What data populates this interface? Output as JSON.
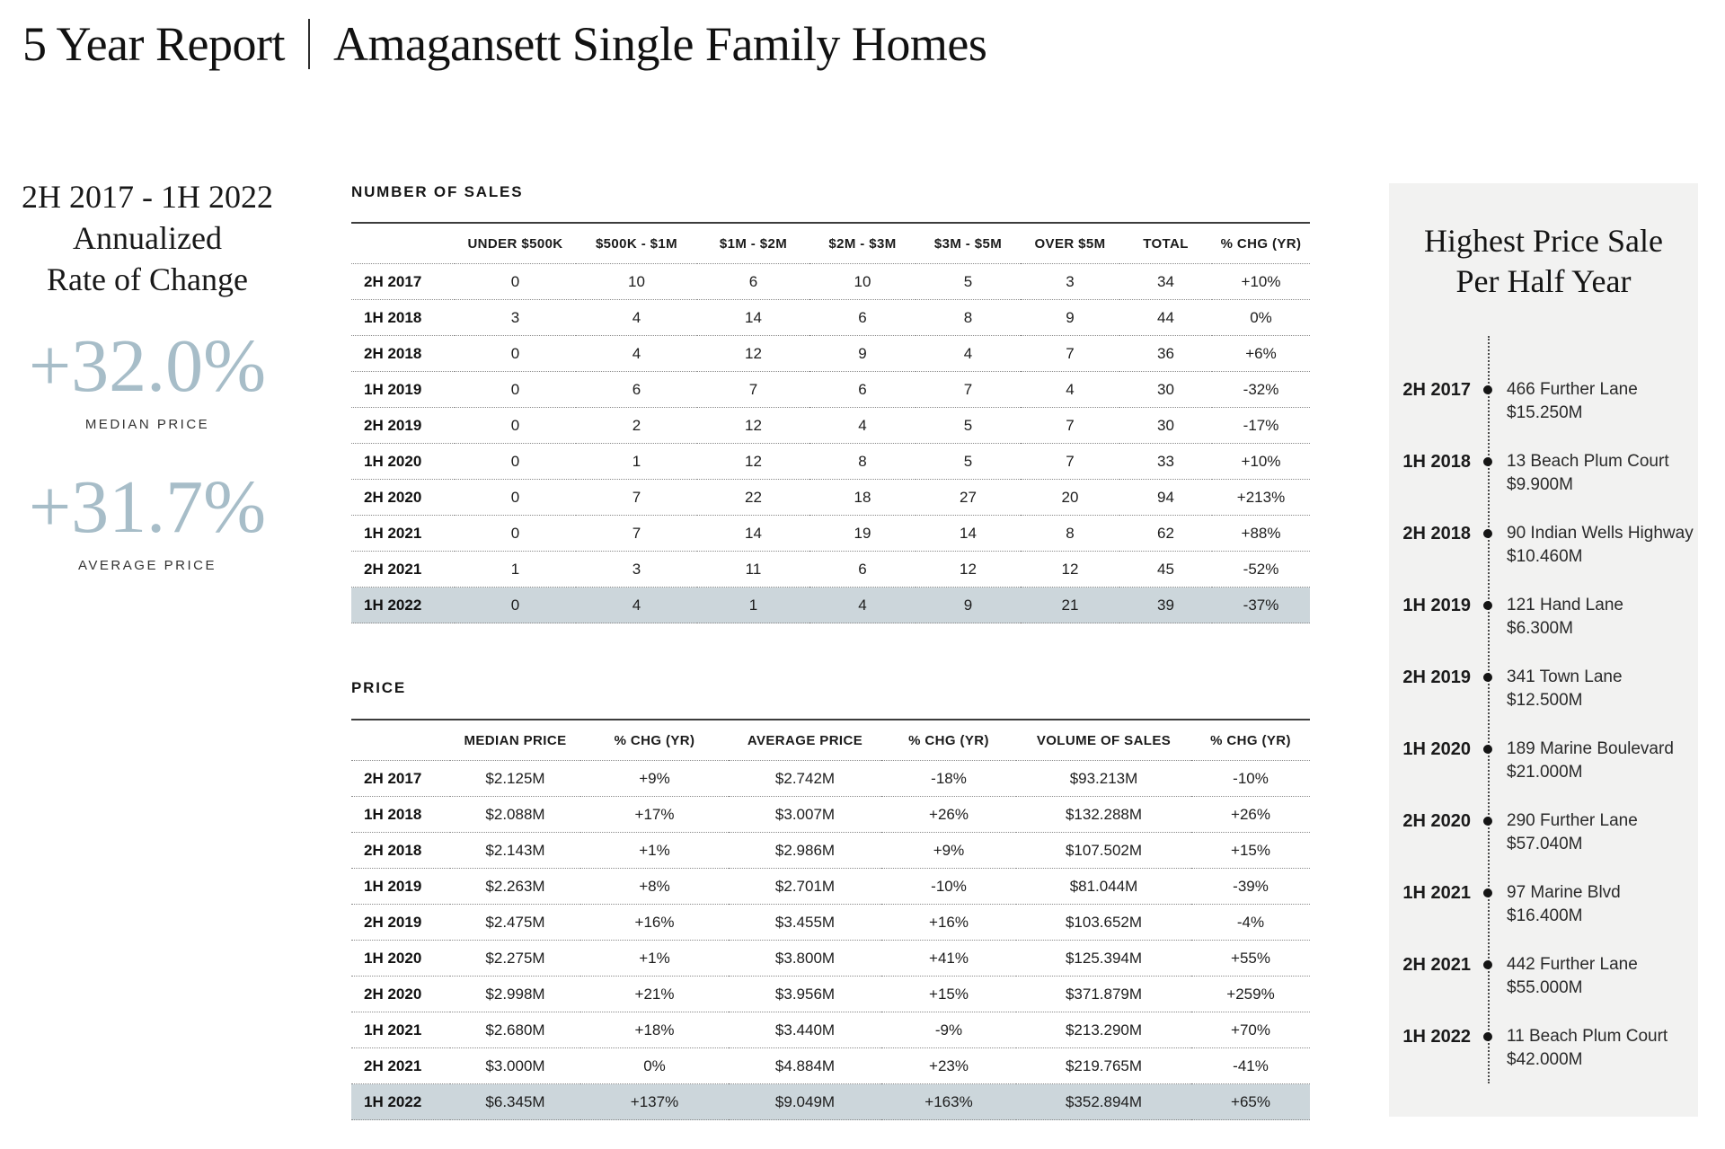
{
  "page_title": {
    "left": "5 Year Report",
    "right": "Amagansett Single Family Homes"
  },
  "summary": {
    "period": [
      "2H 2017 - 1H 2022",
      "Annualized",
      "Rate of Change"
    ],
    "stats": [
      {
        "value": "+32.0%",
        "label": "MEDIAN PRICE"
      },
      {
        "value": "+31.7%",
        "label": "AVERAGE PRICE"
      }
    ]
  },
  "sales_table": {
    "title": "NUMBER OF SALES",
    "columns": [
      "UNDER $500K",
      "$500K - $1M",
      "$1M - $2M",
      "$2M - $3M",
      "$3M - $5M",
      "OVER $5M",
      "TOTAL",
      "% CHG (YR)"
    ],
    "rows": [
      {
        "label": "2H 2017",
        "values": [
          "0",
          "10",
          "6",
          "10",
          "5",
          "3",
          "34",
          "+10%"
        ],
        "highlight": false
      },
      {
        "label": "1H 2018",
        "values": [
          "3",
          "4",
          "14",
          "6",
          "8",
          "9",
          "44",
          "0%"
        ],
        "highlight": false
      },
      {
        "label": "2H 2018",
        "values": [
          "0",
          "4",
          "12",
          "9",
          "4",
          "7",
          "36",
          "+6%"
        ],
        "highlight": false
      },
      {
        "label": "1H 2019",
        "values": [
          "0",
          "6",
          "7",
          "6",
          "7",
          "4",
          "30",
          "-32%"
        ],
        "highlight": false
      },
      {
        "label": "2H 2019",
        "values": [
          "0",
          "2",
          "12",
          "4",
          "5",
          "7",
          "30",
          "-17%"
        ],
        "highlight": false
      },
      {
        "label": "1H 2020",
        "values": [
          "0",
          "1",
          "12",
          "8",
          "5",
          "7",
          "33",
          "+10%"
        ],
        "highlight": false
      },
      {
        "label": "2H 2020",
        "values": [
          "0",
          "7",
          "22",
          "18",
          "27",
          "20",
          "94",
          "+213%"
        ],
        "highlight": false
      },
      {
        "label": "1H 2021",
        "values": [
          "0",
          "7",
          "14",
          "19",
          "14",
          "8",
          "62",
          "+88%"
        ],
        "highlight": false
      },
      {
        "label": "2H 2021",
        "values": [
          "1",
          "3",
          "11",
          "6",
          "12",
          "12",
          "45",
          "-52%"
        ],
        "highlight": false
      },
      {
        "label": "1H 2022",
        "values": [
          "0",
          "4",
          "1",
          "4",
          "9",
          "21",
          "39",
          "-37%"
        ],
        "highlight": true
      }
    ]
  },
  "price_table": {
    "title": "PRICE",
    "columns": [
      "MEDIAN PRICE",
      "% CHG (YR)",
      "AVERAGE PRICE",
      "% CHG (YR)",
      "VOLUME OF SALES",
      "% CHG (YR)"
    ],
    "rows": [
      {
        "label": "2H 2017",
        "values": [
          "$2.125M",
          "+9%",
          "$2.742M",
          "-18%",
          "$93.213M",
          "-10%"
        ],
        "highlight": false
      },
      {
        "label": "1H 2018",
        "values": [
          "$2.088M",
          "+17%",
          "$3.007M",
          "+26%",
          "$132.288M",
          "+26%"
        ],
        "highlight": false
      },
      {
        "label": "2H 2018",
        "values": [
          "$2.143M",
          "+1%",
          "$2.986M",
          "+9%",
          "$107.502M",
          "+15%"
        ],
        "highlight": false
      },
      {
        "label": "1H 2019",
        "values": [
          "$2.263M",
          "+8%",
          "$2.701M",
          "-10%",
          "$81.044M",
          "-39%"
        ],
        "highlight": false
      },
      {
        "label": "2H 2019",
        "values": [
          "$2.475M",
          "+16%",
          "$3.455M",
          "+16%",
          "$103.652M",
          "-4%"
        ],
        "highlight": false
      },
      {
        "label": "1H 2020",
        "values": [
          "$2.275M",
          "+1%",
          "$3.800M",
          "+41%",
          "$125.394M",
          "+55%"
        ],
        "highlight": false
      },
      {
        "label": "2H 2020",
        "values": [
          "$2.998M",
          "+21%",
          "$3.956M",
          "+15%",
          "$371.879M",
          "+259%"
        ],
        "highlight": false
      },
      {
        "label": "1H 2021",
        "values": [
          "$2.680M",
          "+18%",
          "$3.440M",
          "-9%",
          "$213.290M",
          "+70%"
        ],
        "highlight": false
      },
      {
        "label": "2H 2021",
        "values": [
          "$3.000M",
          "0%",
          "$4.884M",
          "+23%",
          "$219.765M",
          "-41%"
        ],
        "highlight": false
      },
      {
        "label": "1H 2022",
        "values": [
          "$6.345M",
          "+137%",
          "$9.049M",
          "+163%",
          "$352.894M",
          "+65%"
        ],
        "highlight": true
      }
    ]
  },
  "timeline": {
    "title": [
      "Highest Price Sale",
      "Per Half Year"
    ],
    "entries": [
      {
        "period": "2H 2017",
        "address": "466 Further Lane",
        "price": "$15.250M"
      },
      {
        "period": "1H 2018",
        "address": "13 Beach Plum Court",
        "price": "$9.900M"
      },
      {
        "period": "2H 2018",
        "address": "90 Indian Wells Highway",
        "price": "$10.460M"
      },
      {
        "period": "1H 2019",
        "address": "121 Hand Lane",
        "price": "$6.300M"
      },
      {
        "period": "2H 2019",
        "address": "341 Town Lane",
        "price": "$12.500M"
      },
      {
        "period": "1H 2020",
        "address": "189 Marine Boulevard",
        "price": "$21.000M"
      },
      {
        "period": "2H 2020",
        "address": "290 Further Lane",
        "price": "$57.040M"
      },
      {
        "period": "1H 2021",
        "address": "97 Marine Blvd",
        "price": "$16.400M"
      },
      {
        "period": "2H 2021",
        "address": "442 Further Lane",
        "price": "$55.000M"
      },
      {
        "period": "1H 2022",
        "address": "11 Beach Plum Court",
        "price": "$42.000M"
      }
    ]
  },
  "colors": {
    "accent_blue": "#a7bdc8",
    "highlight_row": "#ccd6db",
    "panel_bg": "#f2f2f1",
    "text": "#1d1d1d"
  }
}
